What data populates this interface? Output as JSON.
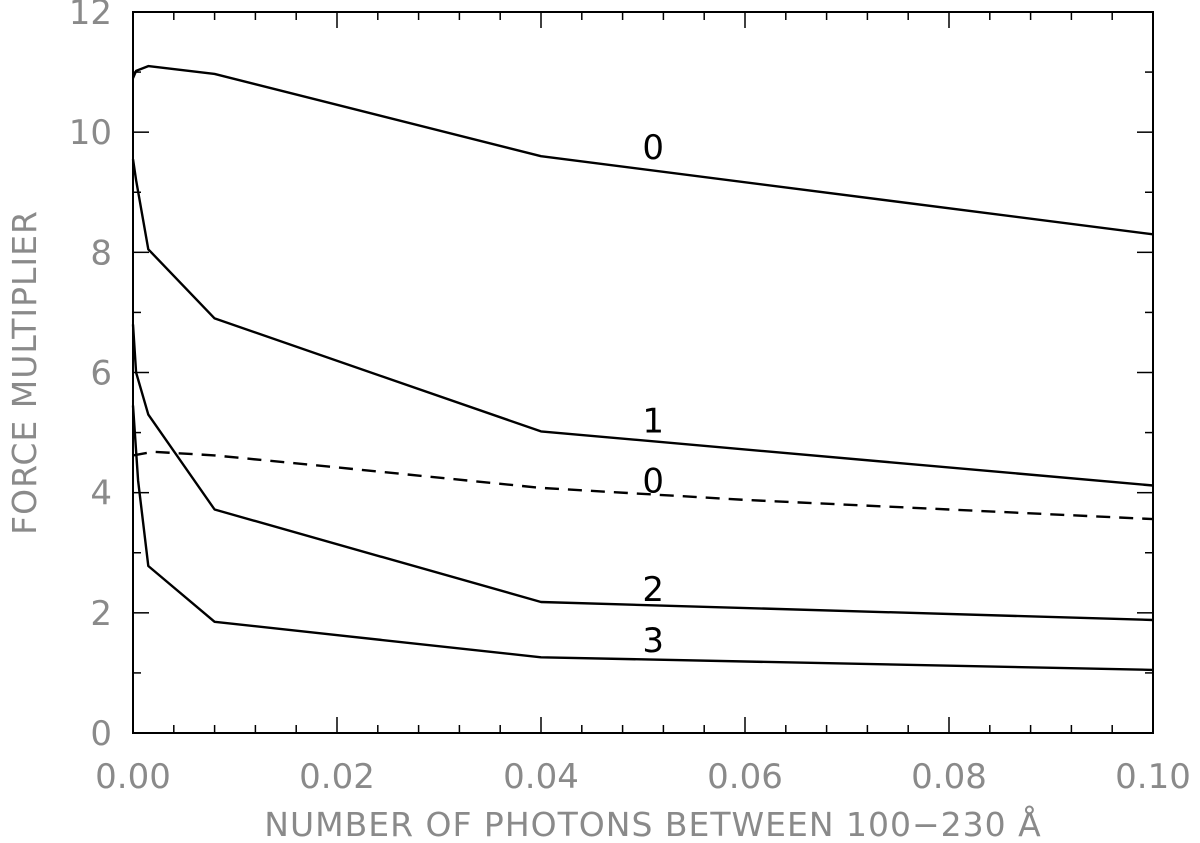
{
  "chart_data": {
    "type": "line",
    "title": "",
    "xlabel": "NUMBER OF PHOTONS BETWEEN 100−230 Å",
    "ylabel": "FORCE MULTIPLIER",
    "xlim": [
      0.0,
      0.1
    ],
    "ylim": [
      0,
      12
    ],
    "x_ticks": [
      "0.00",
      "0.02",
      "0.04",
      "0.06",
      "0.08",
      "0.10"
    ],
    "y_ticks": [
      "0",
      "2",
      "4",
      "6",
      "8",
      "10",
      "12"
    ],
    "grid": false,
    "series": [
      {
        "name": "0",
        "style": "solid",
        "label_at": [
          0.051,
          9.75
        ],
        "points": [
          [
            0.0,
            10.9
          ],
          [
            0.0003,
            11.02
          ],
          [
            0.0015,
            11.1
          ],
          [
            0.008,
            10.97
          ],
          [
            0.04,
            9.6
          ],
          [
            0.1,
            8.3
          ]
        ]
      },
      {
        "name": "1",
        "style": "solid",
        "label_at": [
          0.051,
          5.2
        ],
        "points": [
          [
            0.0,
            9.55
          ],
          [
            0.0003,
            9.2
          ],
          [
            0.0015,
            8.05
          ],
          [
            0.008,
            6.9
          ],
          [
            0.04,
            5.02
          ],
          [
            0.1,
            4.12
          ]
        ]
      },
      {
        "name": "0",
        "style": "dashed",
        "label_at": [
          0.051,
          4.2
        ],
        "points": [
          [
            0.0,
            4.62
          ],
          [
            0.002,
            4.68
          ],
          [
            0.008,
            4.62
          ],
          [
            0.02,
            4.42
          ],
          [
            0.04,
            4.08
          ],
          [
            0.06,
            3.88
          ],
          [
            0.08,
            3.72
          ],
          [
            0.1,
            3.56
          ]
        ]
      },
      {
        "name": "2",
        "style": "solid",
        "label_at": [
          0.051,
          2.4
        ],
        "points": [
          [
            0.0,
            6.8
          ],
          [
            0.0003,
            6.0
          ],
          [
            0.0015,
            5.3
          ],
          [
            0.008,
            3.72
          ],
          [
            0.04,
            2.18
          ],
          [
            0.1,
            1.88
          ]
        ]
      },
      {
        "name": "3",
        "style": "solid",
        "label_at": [
          0.051,
          1.55
        ],
        "points": [
          [
            0.0,
            5.45
          ],
          [
            0.0005,
            4.2
          ],
          [
            0.0015,
            2.78
          ],
          [
            0.008,
            1.85
          ],
          [
            0.04,
            1.26
          ],
          [
            0.1,
            1.05
          ]
        ]
      }
    ]
  }
}
